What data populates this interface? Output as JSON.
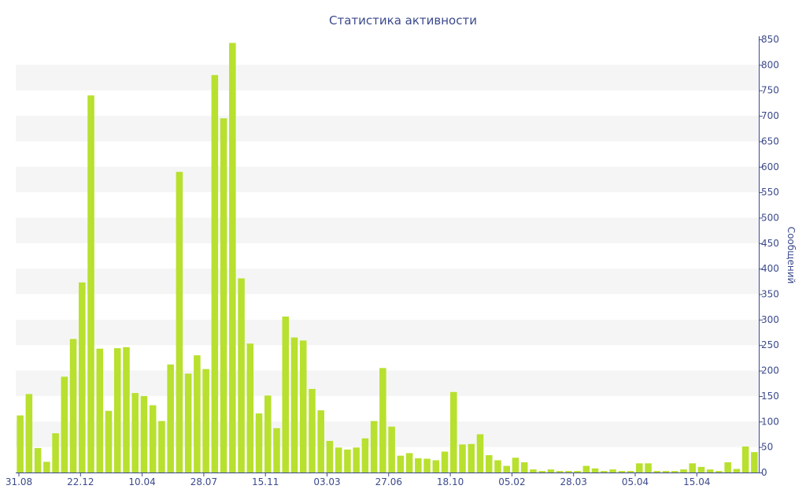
{
  "chart_data": {
    "type": "bar",
    "title": "Статистика активности",
    "xlabel": "",
    "ylabel": "Сообщений",
    "ylim": [
      0,
      850
    ],
    "y_ticks": [
      0,
      50,
      100,
      150,
      200,
      250,
      300,
      350,
      400,
      450,
      500,
      550,
      600,
      650,
      700,
      750,
      800,
      850
    ],
    "y_axis_side": "right",
    "grid": "horizontal alternating bands",
    "x_tick_labels": [
      "31.08",
      "22.12",
      "10.04",
      "28.07",
      "15.11",
      "03.03",
      "27.06",
      "18.10",
      "05.02",
      "28.03",
      "05.04",
      "15.04"
    ],
    "values": [
      112,
      154,
      48,
      21,
      77,
      188,
      262,
      373,
      740,
      243,
      121,
      244,
      246,
      156,
      150,
      132,
      101,
      212,
      590,
      194,
      230,
      203,
      780,
      695,
      843,
      381,
      253,
      116,
      151,
      87,
      306,
      265,
      259,
      164,
      122,
      62,
      49,
      45,
      49,
      67,
      101,
      205,
      90,
      33,
      38,
      28,
      27,
      24,
      41,
      158,
      55,
      56,
      75,
      34,
      24,
      13,
      29,
      20,
      6,
      3,
      6,
      3,
      3,
      3,
      13,
      8,
      3,
      6,
      3,
      3,
      18,
      18,
      3,
      3,
      3,
      6,
      18,
      11,
      6,
      3,
      20,
      7,
      51,
      40
    ],
    "colors": {
      "bar": "#b8e02e",
      "text": "#3b4a8c",
      "band": "#f5f5f5"
    }
  }
}
